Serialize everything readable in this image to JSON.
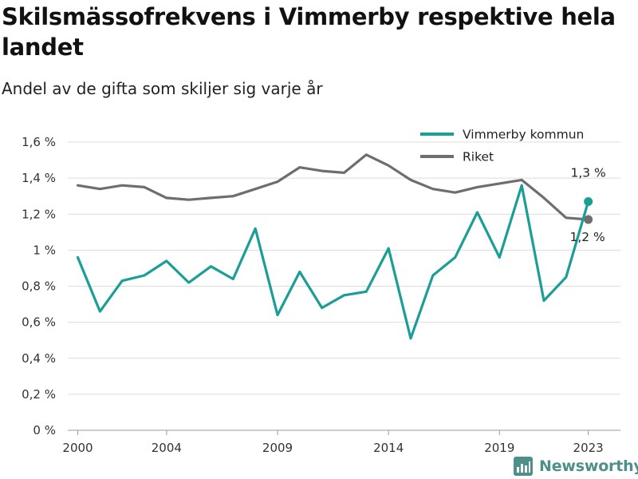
{
  "header": {
    "title": "Skilsmässofrekvens i Vimmerby respektive hela landet",
    "subtitle": "Andel av de gifta som skiljer sig varje år"
  },
  "chart_data": {
    "type": "line",
    "x": [
      2000,
      2001,
      2002,
      2003,
      2004,
      2005,
      2006,
      2007,
      2008,
      2009,
      2010,
      2011,
      2012,
      2013,
      2014,
      2015,
      2016,
      2017,
      2018,
      2019,
      2020,
      2021,
      2022,
      2023
    ],
    "series": [
      {
        "name": "Vimmerby kommun",
        "color": "#1a9e96",
        "values": [
          0.96,
          0.66,
          0.83,
          0.86,
          0.94,
          0.82,
          0.91,
          0.84,
          1.12,
          0.64,
          0.88,
          0.68,
          0.75,
          0.77,
          1.01,
          0.51,
          0.86,
          0.96,
          1.21,
          0.96,
          1.36,
          0.72,
          0.85,
          1.27
        ],
        "end_label": "1,3 %"
      },
      {
        "name": "Riket",
        "color": "#6e6e72",
        "values": [
          1.36,
          1.34,
          1.36,
          1.35,
          1.29,
          1.28,
          1.29,
          1.3,
          1.34,
          1.38,
          1.46,
          1.44,
          1.43,
          1.53,
          1.47,
          1.39,
          1.34,
          1.32,
          1.35,
          1.37,
          1.39,
          1.29,
          1.18,
          1.17
        ],
        "end_label": "1,2 %"
      }
    ],
    "ylim": [
      0,
      1.6
    ],
    "y_ticks": [
      0,
      0.2,
      0.4,
      0.6,
      0.8,
      1.0,
      1.2,
      1.4,
      1.6
    ],
    "y_tick_labels": [
      "0 %",
      "0,2 %",
      "0,4 %",
      "0,6 %",
      "0,8 %",
      "1 %",
      "1,2 %",
      "1,4 %",
      "1,6 %"
    ],
    "x_ticks": [
      2000,
      2004,
      2009,
      2014,
      2019,
      2023
    ],
    "x_tick_labels": [
      "2000",
      "2004",
      "2009",
      "2014",
      "2019",
      "2023"
    ],
    "grid": "horizontal",
    "legend": "top-right"
  },
  "brand": {
    "name": "Newsworthy",
    "color": "#4f8f8a"
  }
}
